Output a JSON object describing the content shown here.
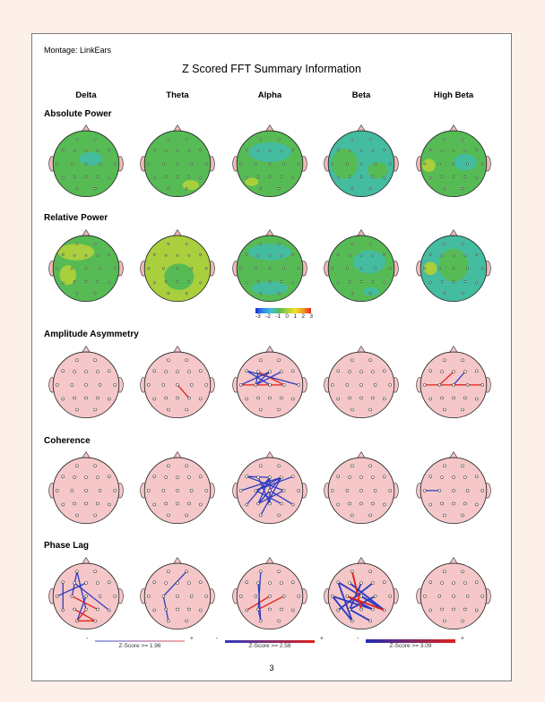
{
  "montage": "Montage:  LinkEars",
  "title": "Z Scored FFT Summary Information",
  "bands": [
    "Delta",
    "Theta",
    "Alpha",
    "Beta",
    "High Beta"
  ],
  "rows": [
    "Absolute Power",
    "Relative Power",
    "Amplitude Asymmetry",
    "Coherence",
    "Phase Lag"
  ],
  "color_scale": {
    "ticks": [
      "-3",
      "-2",
      "-1",
      "0",
      "1",
      "2",
      "3"
    ],
    "colors": [
      "#1a2fd6",
      "#2f8fe6",
      "#43c1d2",
      "#56bb54",
      "#a9cf3c",
      "#f0e22a",
      "#f29a1f",
      "#e52a1a"
    ]
  },
  "legends": [
    {
      "minus": "-",
      "plus": "+",
      "text": "Z-Score >= 1.96",
      "line_style": "thin"
    },
    {
      "minus": "-",
      "plus": "+",
      "text": "Z-Score >= 2.58",
      "line_style": "medium"
    },
    {
      "minus": "-",
      "plus": "+",
      "text": "Z-Score >= 3.09",
      "line_style": "thick"
    }
  ],
  "page_number": "3",
  "colors": {
    "page_background": "#fdf0e8",
    "head_pink": "#f5c7c9",
    "map_green": "#56bb54",
    "map_lime": "#a9cf3c",
    "map_teal": "#43bca0",
    "connection_red": "#e0201a",
    "connection_blue": "#2c3cc0"
  }
}
